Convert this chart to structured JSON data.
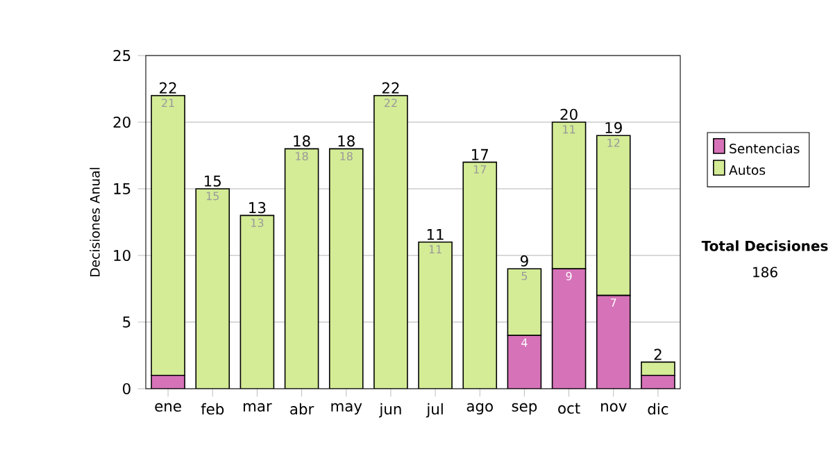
{
  "chart_data": {
    "type": "bar",
    "stacked": true,
    "ylabel": "Decisiones Anual",
    "categories": [
      "ene",
      "feb",
      "mar",
      "abr",
      "may",
      "jun",
      "jul",
      "ago",
      "sep",
      "oct",
      "nov",
      "dic"
    ],
    "series": [
      {
        "name": "Sentencias",
        "color": "#d672b8",
        "values": [
          1,
          0,
          0,
          0,
          0,
          0,
          0,
          0,
          4,
          9,
          7,
          1
        ],
        "value_labels": [
          null,
          null,
          null,
          null,
          null,
          null,
          null,
          null,
          "4",
          "9",
          "7",
          null
        ]
      },
      {
        "name": "Autos",
        "color": "#d4ec96",
        "values": [
          21,
          15,
          13,
          18,
          18,
          22,
          11,
          17,
          5,
          11,
          12,
          1
        ],
        "value_labels": [
          "21",
          "15",
          "13",
          "18",
          "18",
          "22",
          "11",
          "17",
          "5",
          "11",
          "12",
          null
        ]
      }
    ],
    "totals": [
      "22",
      "15",
      "13",
      "18",
      "18",
      "22",
      "11",
      "17",
      "9",
      "20",
      "19",
      "2"
    ],
    "ylim": [
      0,
      25
    ],
    "yticks": [
      0,
      5,
      10,
      15,
      20,
      25
    ],
    "grid": "y",
    "legend": "right",
    "annotations": [
      "Total Decisiones",
      "186"
    ]
  }
}
